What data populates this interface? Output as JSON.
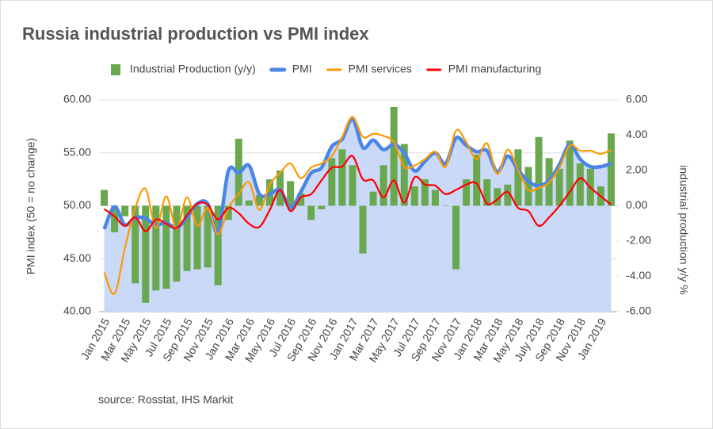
{
  "chart_data": {
    "type": "combo",
    "title": "Russia industrial production vs PMI index",
    "ylabel": "PMI index (50 = no change)",
    "y2label": "industrial production y/y %",
    "source": "source: Rosstat, IHS Markit",
    "categories": [
      "Jan 2015",
      null,
      "Mar 2015",
      null,
      "May 2015",
      null,
      "Jul 2015",
      null,
      "Sep 2015",
      null,
      "Nov 2015",
      null,
      "Jan 2016",
      null,
      "Mar 2016",
      null,
      "May 2016",
      null,
      "Jul 2016",
      null,
      "Sep 2016",
      null,
      "Nov 2016",
      null,
      "Jan 2017",
      null,
      "Mar 2017",
      null,
      "May 2017",
      null,
      "Jul 2017",
      null,
      "Sep 2017",
      null,
      "Nov 2017",
      null,
      "Jan 2018",
      null,
      "Mar 2018",
      null,
      "May 2018",
      null,
      "July 2018",
      null,
      "Sep 2018",
      null,
      "Nov 2018",
      null,
      "Jan 2019",
      null
    ],
    "series": [
      {
        "name": "Industrial Production (y/y)",
        "type": "bar",
        "axis": "y2",
        "color": "#6aa84f",
        "values": [
          0.9,
          -1.5,
          -0.6,
          -4.4,
          -5.5,
          -4.8,
          -4.7,
          -4.3,
          -3.7,
          -3.6,
          -3.5,
          -4.5,
          -0.8,
          3.8,
          0.3,
          0.6,
          1.5,
          2.0,
          1.4,
          0.7,
          -0.8,
          -0.2,
          2.7,
          3.2,
          2.3,
          -2.7,
          0.8,
          2.3,
          5.6,
          3.5,
          1.1,
          1.5,
          0.9,
          0.0,
          -3.6,
          1.5,
          2.9,
          1.5,
          1.0,
          1.2,
          3.2,
          2.2,
          3.9,
          2.7,
          2.1,
          3.7,
          2.4,
          2.1,
          1.1,
          4.1
        ]
      },
      {
        "name": "PMI",
        "type": "area",
        "color": "#4a86e8",
        "fill": "#c9d9f7",
        "values": [
          47.8,
          49.9,
          48.2,
          48.9,
          48.8,
          48.2,
          48.4,
          47.9,
          48.9,
          50.2,
          50.2,
          47.5,
          53.3,
          53.1,
          53.8,
          51.1,
          51.1,
          51.5,
          49.8,
          51.3,
          53.1,
          53.6,
          55.6,
          56.3,
          58.2,
          55.5,
          56.2,
          55.3,
          55.8,
          55.0,
          53.3,
          54.2,
          55.0,
          54.0,
          56.4,
          55.7,
          55.1,
          55.2,
          53.2,
          54.7,
          53.4,
          52.3,
          51.9,
          52.4,
          53.9,
          55.8,
          54.4,
          53.7,
          53.7,
          54.0
        ]
      },
      {
        "name": "PMI services",
        "type": "line",
        "color": "#ff9900",
        "values": [
          43.7,
          41.7,
          46.0,
          49.8,
          51.6,
          47.9,
          50.9,
          47.8,
          50.8,
          48.1,
          49.8,
          47.3,
          49.8,
          51.1,
          52.2,
          49.6,
          52.0,
          53.1,
          54.0,
          52.6,
          53.6,
          54.0,
          54.7,
          56.5,
          58.4,
          56.5,
          56.8,
          56.6,
          56.0,
          53.7,
          53.8,
          54.4,
          55.1,
          53.7,
          57.1,
          56.0,
          54.4,
          55.9,
          53.0,
          55.3,
          53.4,
          51.5,
          51.7,
          52.2,
          53.6,
          55.7,
          55.2,
          55.2,
          54.9,
          55.3
        ]
      },
      {
        "name": "PMI manufacturing",
        "type": "line",
        "color": "#ff0000",
        "values": [
          49.7,
          49.0,
          48.1,
          48.9,
          47.6,
          48.7,
          48.3,
          47.9,
          49.1,
          50.2,
          50.1,
          48.7,
          49.8,
          49.3,
          48.3,
          48.0,
          49.6,
          51.5,
          49.5,
          50.8,
          51.1,
          52.4,
          53.6,
          53.7,
          54.7,
          52.5,
          52.4,
          50.8,
          52.4,
          50.3,
          52.7,
          52.0,
          51.9,
          51.1,
          51.5,
          52.0,
          52.1,
          50.2,
          50.6,
          51.3,
          49.8,
          49.5,
          48.1,
          48.9,
          50.0,
          51.3,
          52.6,
          51.7,
          50.9,
          50.1
        ]
      }
    ],
    "ylim": [
      40,
      60
    ],
    "yticks": [
      {
        "value": 40,
        "label": "40.00"
      },
      {
        "value": 45,
        "label": "45.00"
      },
      {
        "value": 50,
        "label": "50.00"
      },
      {
        "value": 55,
        "label": "55.00"
      },
      {
        "value": 60,
        "label": "60.00"
      }
    ],
    "y2lim": [
      -6,
      6
    ],
    "y2ticks": [
      {
        "value": -6,
        "label": "-6.00"
      },
      {
        "value": -4,
        "label": "-4.00"
      },
      {
        "value": -2,
        "label": "-2.00"
      },
      {
        "value": 0,
        "label": "0.00"
      },
      {
        "value": 2,
        "label": "2.00"
      },
      {
        "value": 4,
        "label": "4.00"
      },
      {
        "value": 6,
        "label": "6.00"
      }
    ],
    "grid": true,
    "legend": "top"
  }
}
